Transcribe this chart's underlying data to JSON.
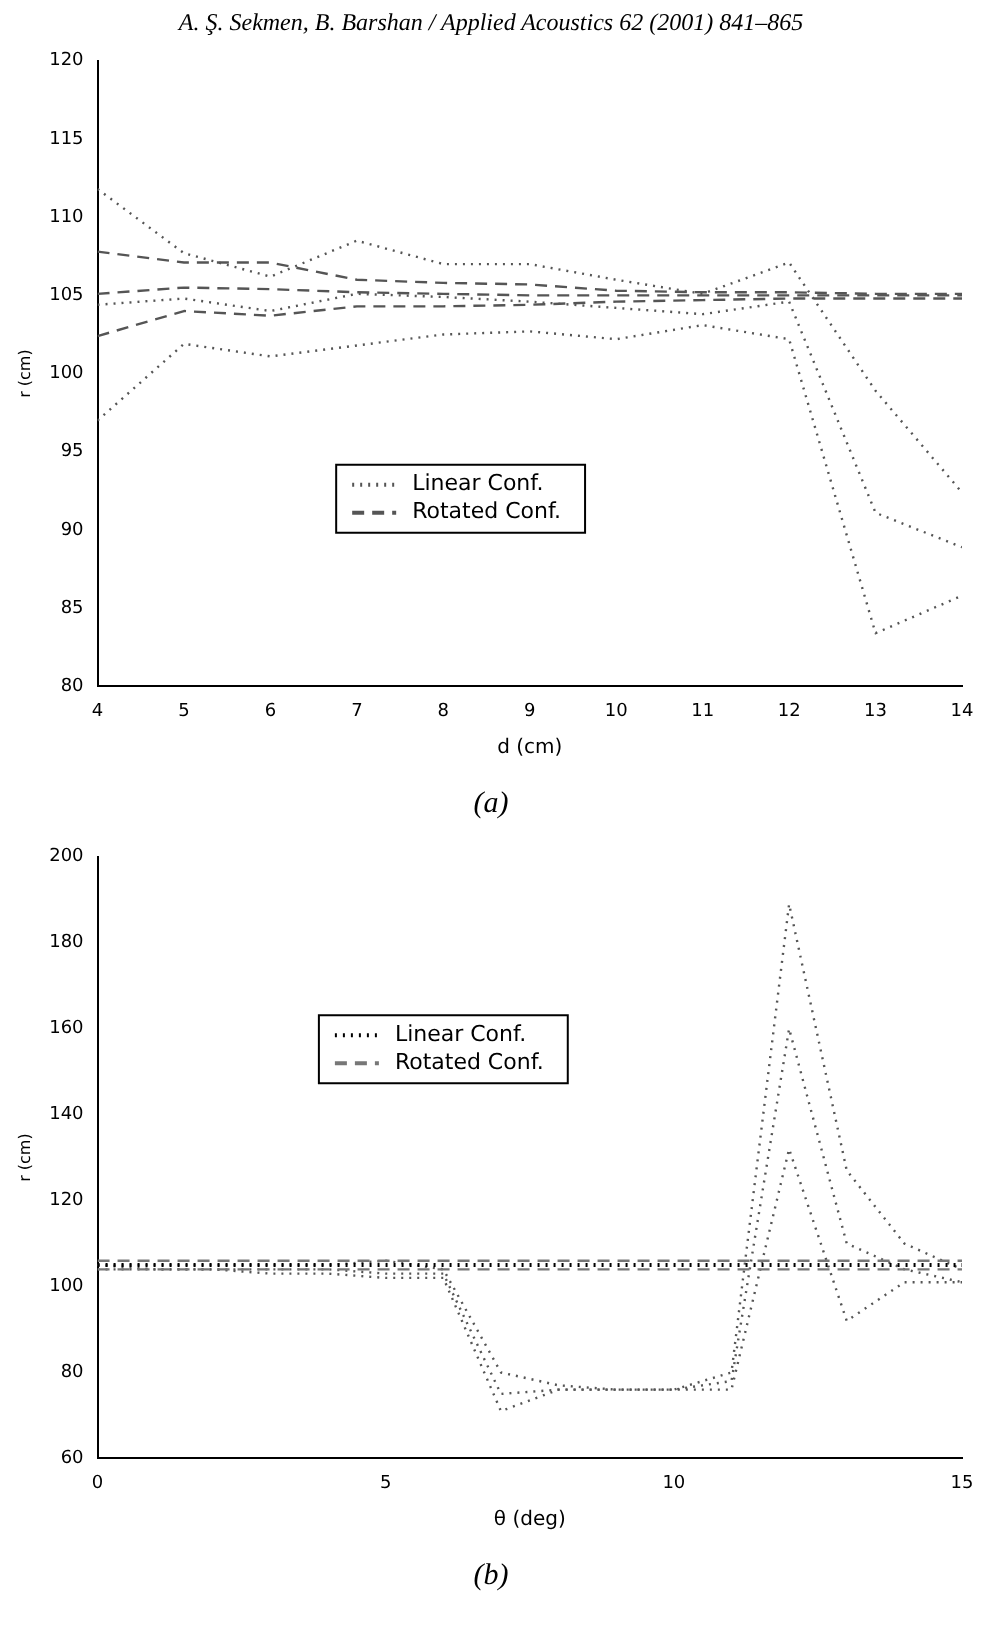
{
  "chart_data": [
    {
      "type": "line",
      "title": "A. Ş. Sekmen, B. Barshan / Applied Acoustics 62 (2001) 841–865",
      "xlabel": "d (cm)",
      "ylabel": "r (cm)",
      "annotations": [
        "(a)"
      ],
      "x": [
        4,
        5,
        6,
        7,
        8,
        9,
        10,
        11,
        12,
        13,
        14
      ],
      "xlim": [
        4,
        14
      ],
      "xticks": [
        4,
        5,
        6,
        7,
        8,
        9,
        10,
        11,
        12,
        13,
        14
      ],
      "ylim": [
        80,
        120
      ],
      "yticks": [
        80,
        85,
        90,
        95,
        100,
        105,
        110,
        115,
        120
      ],
      "grid": false,
      "legend": "bottom",
      "marker": "none",
      "series": [
        {
          "name": "Linear Conf.",
          "color": "#555555",
          "line_style": "dotted",
          "values": [
            111.8,
            107.7,
            106.2,
            108.5,
            107,
            107,
            106,
            105.1,
            107.1,
            98.9,
            92.4
          ]
        },
        {
          "color": "#555555",
          "line_style": "dotted",
          "values": [
            104.4,
            104.8,
            104,
            105.1,
            104.9,
            104.6,
            104.2,
            103.8,
            104.6,
            91.1,
            88.9
          ]
        },
        {
          "color": "#555555",
          "line_style": "dotted",
          "values": [
            97,
            101.9,
            101.1,
            101.8,
            102.5,
            102.7,
            102.2,
            103.1,
            102.2,
            83.4,
            85.8
          ]
        },
        {
          "name": "Rotated Conf.",
          "color": "#555555",
          "line_style": "dashed",
          "values": [
            107.8,
            107.1,
            107.1,
            106,
            105.8,
            105.7,
            105.3,
            105.2,
            105.2,
            105.1,
            105.1
          ]
        },
        {
          "color": "#555555",
          "line_style": "dashed",
          "values": [
            105.1,
            105.5,
            105.4,
            105.2,
            105.1,
            105,
            105,
            105,
            105,
            105,
            105
          ]
        },
        {
          "color": "#555555",
          "line_style": "dashed",
          "values": [
            102.4,
            104,
            103.7,
            104.3,
            104.3,
            104.4,
            104.6,
            104.7,
            104.8,
            104.8,
            104.8
          ]
        }
      ]
    },
    {
      "type": "line",
      "xlabel": "θ (deg)",
      "ylabel": "r (cm)",
      "annotations": [
        "(b)"
      ],
      "x": [
        0,
        1,
        2,
        3,
        4,
        5,
        6,
        7,
        8,
        9,
        10,
        11,
        12,
        13,
        14,
        15
      ],
      "xlim": [
        0,
        15
      ],
      "xticks": [
        0,
        5,
        10,
        15
      ],
      "ylim": [
        60,
        200
      ],
      "yticks": [
        60,
        80,
        100,
        120,
        140,
        160,
        180,
        200
      ],
      "grid": false,
      "legend": "top",
      "marker": "none",
      "series": [
        {
          "name": "Linear Conf.",
          "color": "#000000",
          "line_style": "dotted",
          "values": [
            105,
            105,
            105,
            105,
            105,
            105,
            105,
            105,
            105,
            105,
            105,
            105,
            105,
            105,
            105,
            105
          ]
        },
        {
          "name": "Rotated Conf.",
          "color": "#777777",
          "line_style": "dashed",
          "values": [
            106,
            106,
            106,
            106,
            106,
            106,
            106,
            106,
            106,
            106,
            106,
            106,
            106,
            106,
            106,
            106
          ]
        },
        {
          "color": "#777777",
          "line_style": "dashed",
          "values": [
            104,
            104,
            104,
            104,
            104,
            104,
            104,
            104,
            104,
            104,
            104,
            104,
            104,
            104,
            104,
            104
          ]
        },
        {
          "color": "#555555",
          "line_style": "dotted",
          "values": [
            105,
            105,
            105,
            105,
            105,
            106,
            104,
            80,
            77,
            76,
            76,
            80,
            189,
            127,
            110,
            104
          ]
        },
        {
          "color": "#555555",
          "line_style": "dotted",
          "values": [
            105,
            104,
            104,
            104,
            104,
            103,
            103,
            75,
            76,
            76,
            76,
            78,
            160,
            110,
            104,
            101
          ]
        },
        {
          "color": "#555555",
          "line_style": "dotted",
          "values": [
            104,
            104,
            104,
            103,
            103,
            102,
            102,
            71,
            76,
            76,
            76,
            76,
            132,
            92,
            101,
            101
          ]
        }
      ]
    }
  ]
}
